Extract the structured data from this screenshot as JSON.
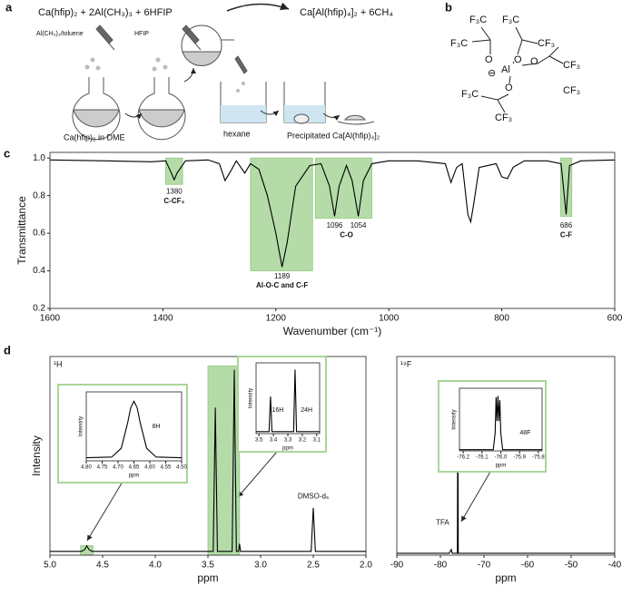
{
  "panel_labels": [
    "a",
    "b",
    "c",
    "d"
  ],
  "scheme": {
    "equation_left": "Ca(hfip)₂ + 2Al(CH₃)₃ + 6HFIP",
    "equation_right": "Ca[Al(hfip)₄]₂ + 6CH₄",
    "labels": [
      "Al(CH₃)₃/toluene",
      "HFIP",
      "Ca(hfip)₂ in DME",
      "hexane",
      "Precipitated Ca[Al(hfip)₄]₂"
    ]
  },
  "structure": {
    "labels": [
      "F₃C",
      "F₃C",
      "F₃C",
      "CF₃",
      "O",
      "O",
      "O",
      "⊖",
      "Al",
      "CF₃",
      "O",
      "F₃C",
      "CF₃",
      "CF₃"
    ]
  },
  "chart_data": [
    {
      "type": "line",
      "xlabel": "Wavenumber (cm⁻¹)",
      "ylabel": "Transmittance",
      "color": "#000000",
      "highlight_color": "#a9d69a",
      "xlim": [
        1600,
        600
      ],
      "ylim": [
        0.2,
        1.03
      ],
      "xticks": [
        1600,
        1400,
        1200,
        1000,
        800,
        600
      ],
      "yticks": [
        0.2,
        0.4,
        0.6,
        0.8,
        {
          "value": 1,
          "label": "1.0"
        }
      ],
      "x": [
        1600,
        1500,
        1420,
        1395,
        1385,
        1380,
        1375,
        1360,
        1320,
        1300,
        1290,
        1280,
        1270,
        1255,
        1245,
        1230,
        1215,
        1200,
        1189,
        1180,
        1165,
        1140,
        1120,
        1105,
        1096,
        1088,
        1075,
        1065,
        1054,
        1045,
        1030,
        1000,
        950,
        900,
        890,
        880,
        870,
        860,
        855,
        850,
        840,
        810,
        800,
        790,
        780,
        760,
        720,
        695,
        686,
        680,
        660,
        600
      ],
      "values": [
        0.99,
        0.985,
        0.98,
        0.985,
        0.92,
        0.885,
        0.92,
        0.985,
        0.99,
        0.97,
        0.88,
        0.93,
        0.985,
        0.92,
        0.97,
        0.94,
        0.8,
        0.6,
        0.42,
        0.55,
        0.85,
        0.96,
        0.97,
        0.85,
        0.69,
        0.85,
        0.96,
        0.88,
        0.69,
        0.88,
        0.97,
        0.985,
        0.985,
        0.97,
        0.87,
        0.95,
        0.97,
        0.7,
        0.66,
        0.75,
        0.95,
        0.97,
        0.9,
        0.89,
        0.95,
        0.985,
        0.985,
        0.97,
        0.7,
        0.96,
        0.985,
        0.99
      ],
      "highlights": [
        {
          "x_range": [
            1395,
            1365
          ],
          "y_range": [
            0.86,
            1.0
          ]
        },
        {
          "x_range": [
            1245,
            1135
          ],
          "y_range": [
            0.4,
            1.0
          ]
        },
        {
          "x_range": [
            1130,
            1030
          ],
          "y_range": [
            0.68,
            1.0
          ]
        },
        {
          "x_range": [
            696,
            676
          ],
          "y_range": [
            0.69,
            1.0
          ]
        }
      ],
      "annotations": [
        {
          "text": "1380",
          "x": 1380,
          "y": 0.82
        },
        {
          "text": "C-CF₃",
          "x": 1380,
          "y": 0.77
        },
        {
          "text": "1189",
          "x": 1189,
          "y": 0.37
        },
        {
          "text": "Al-O-C and C-F",
          "x": 1189,
          "y": 0.32
        },
        {
          "text": "1096",
          "x": 1096,
          "y": 0.64
        },
        {
          "text": "1054",
          "x": 1054,
          "y": 0.64
        },
        {
          "text": "C-O",
          "x": 1075,
          "y": 0.59
        },
        {
          "text": "686",
          "x": 686,
          "y": 0.64
        },
        {
          "text": "C-F",
          "x": 686,
          "y": 0.59
        }
      ]
    },
    {
      "type": "line",
      "xlabel": "ppm",
      "ylabel": "Intensity",
      "corner_label": "¹H",
      "color": "#000000",
      "highlight_color": "#a9d69a",
      "xlim": [
        5.0,
        2.0
      ],
      "ylim": [
        0,
        1.05
      ],
      "xticks": [
        {
          "value": 5,
          "label": "5.0"
        },
        4.5,
        {
          "value": 4,
          "label": "4.0"
        },
        3.5,
        {
          "value": 3,
          "label": "3.0"
        },
        2.5,
        {
          "value": 2,
          "label": "2.0"
        }
      ],
      "x": [
        5.0,
        4.7,
        4.67,
        4.65,
        4.63,
        4.6,
        3.45,
        3.43,
        3.41,
        3.27,
        3.25,
        3.23,
        3.21,
        3.2,
        3.19,
        2.52,
        2.5,
        2.48,
        2.0
      ],
      "values": [
        0.02,
        0.02,
        0.03,
        0.05,
        0.03,
        0.02,
        0.02,
        0.78,
        0.02,
        0.02,
        0.98,
        0.02,
        0.02,
        0.06,
        0.02,
        0.02,
        0.25,
        0.02,
        0.02
      ],
      "highlights": [
        {
          "x_range": [
            3.5,
            3.2
          ],
          "y_range": [
            0,
            1.0
          ]
        },
        {
          "x_range": [
            4.71,
            4.59
          ],
          "y_range": [
            0,
            0.05
          ]
        }
      ],
      "annotations": [
        {
          "text": "DMSO-d₆",
          "x": 2.5,
          "y": 0.31
        }
      ]
    },
    {
      "type": "line",
      "xlabel": "ppm",
      "corner_label": "¹⁹F",
      "color": "#000000",
      "xlim": [
        -90,
        -40
      ],
      "ylim": [
        0,
        1.05
      ],
      "xticks": [
        -90,
        -80,
        -70,
        -60,
        -50,
        -40
      ],
      "x": [
        -90,
        -78,
        -77.5,
        -77.3,
        -76.1,
        -76,
        -75.9,
        -40
      ],
      "values": [
        0.01,
        0.01,
        0.03,
        0.01,
        0.01,
        0.9,
        0.01,
        0.01
      ],
      "annotations": [
        {
          "text": "TFA",
          "x": -79.5,
          "y": 0.17
        }
      ]
    },
    {
      "type": "line",
      "xlabel": "ppm",
      "ylabel": "Intensity",
      "color": "#000000",
      "xlim": [
        4.8,
        4.5
      ],
      "ylim": [
        0,
        1.1
      ],
      "xticks": [
        {
          "value": 4.8,
          "label": "4.80"
        },
        4.75,
        {
          "value": 4.7,
          "label": "4.70"
        },
        4.65,
        {
          "value": 4.6,
          "label": "4.60"
        },
        4.55,
        {
          "value": 4.5,
          "label": "4.50"
        }
      ],
      "x": [
        4.8,
        4.72,
        4.69,
        4.67,
        4.66,
        4.65,
        4.64,
        4.63,
        4.61,
        4.58,
        4.5
      ],
      "values": [
        0.05,
        0.06,
        0.2,
        0.6,
        0.85,
        0.95,
        0.85,
        0.6,
        0.2,
        0.06,
        0.05
      ],
      "annotations": [
        {
          "text": "8H",
          "x": 4.58,
          "y": 0.55
        }
      ]
    },
    {
      "type": "line",
      "xlabel": "ppm",
      "ylabel": "Intensity",
      "color": "#000000",
      "xlim": [
        3.52,
        3.08
      ],
      "ylim": [
        0,
        1.05
      ],
      "xticks": [
        3.5,
        3.4,
        3.3,
        3.2,
        3.1
      ],
      "x": [
        3.52,
        3.43,
        3.425,
        3.42,
        3.415,
        3.41,
        3.26,
        3.255,
        3.25,
        3.245,
        3.24,
        3.08
      ],
      "values": [
        0.03,
        0.03,
        0.3,
        0.55,
        0.3,
        0.03,
        0.03,
        0.5,
        0.95,
        0.5,
        0.03,
        0.03
      ],
      "annotations": [
        {
          "text": "16H",
          "x": 3.37,
          "y": 0.35
        },
        {
          "text": "24H",
          "x": 3.17,
          "y": 0.35
        }
      ]
    },
    {
      "type": "line",
      "xlabel": "ppm",
      "ylabel": "Intensity",
      "color": "#000000",
      "xlim": [
        -76.22,
        -75.78
      ],
      "xticks": [
        -76.2,
        -76.1,
        {
          "value": -76,
          "label": "-76.0"
        },
        -75.9,
        -75.8
      ],
      "ylim": [
        0,
        1.05
      ],
      "x": [
        -76.22,
        -76.04,
        -76.03,
        -76.025,
        -76.02,
        -76.015,
        -76.01,
        -76.005,
        -76.0,
        -75.99,
        -75.78
      ],
      "values": [
        0.02,
        0.02,
        0.3,
        0.9,
        0.5,
        0.92,
        0.5,
        0.85,
        0.3,
        0.02,
        0.02
      ],
      "annotations": [
        {
          "text": "48F",
          "x": -75.87,
          "y": 0.3
        }
      ]
    }
  ]
}
